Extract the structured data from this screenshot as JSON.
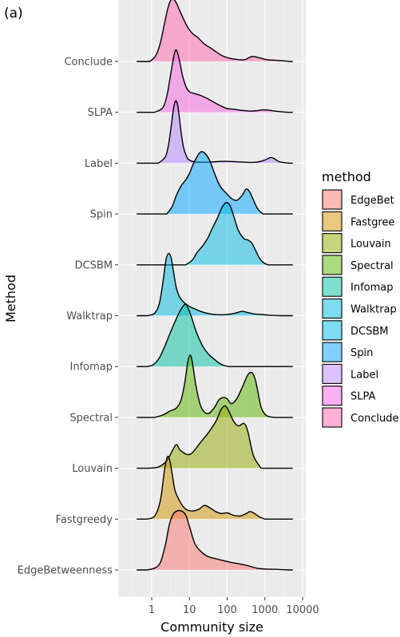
{
  "panel_tag": "(a)",
  "chart_data": {
    "type": "ridgeline density",
    "xlabel": "Community size",
    "ylabel": "Method",
    "x_scale": "log10",
    "x_ticks": [
      1,
      10,
      100,
      1000,
      10000
    ],
    "x_tick_labels": [
      "1",
      "10",
      "100",
      "1000",
      "10000"
    ],
    "x_range": [
      0.33,
      7000
    ],
    "grid": true,
    "legend": {
      "title": "method",
      "placement": "right",
      "entries": [
        "EdgeBet",
        "Fastgree",
        "Louvain",
        "Spectral",
        "Infomap",
        "Walktrap",
        "DCSBM",
        "Spin",
        "Label",
        "SLPA",
        "Conclude"
      ]
    },
    "series": [
      {
        "name": "EdgeBetweenness",
        "color": "#F8766D",
        "x": [
          0.75,
          1.2,
          1.7,
          2.3,
          3.0,
          4.0,
          6.0,
          8.0,
          10,
          14,
          20,
          30,
          50,
          80,
          130,
          200,
          350,
          600,
          1000,
          2000,
          4500
        ],
        "density": [
          0,
          0.03,
          0.12,
          0.4,
          0.75,
          0.92,
          0.95,
          0.88,
          0.7,
          0.42,
          0.3,
          0.22,
          0.18,
          0.15,
          0.12,
          0.1,
          0.07,
          0.03,
          0.015,
          0.01,
          0
        ]
      },
      {
        "name": "Fastgreedy",
        "color": "#D39200",
        "x": [
          0.75,
          1.2,
          1.7,
          2.2,
          2.6,
          3.0,
          3.5,
          4.2,
          6.0,
          8.0,
          12,
          18,
          25,
          35,
          50,
          70,
          100,
          150,
          220,
          300,
          400,
          500,
          700,
          1000
        ],
        "density": [
          0,
          0.05,
          0.3,
          0.8,
          1.0,
          0.95,
          0.72,
          0.45,
          0.25,
          0.16,
          0.13,
          0.16,
          0.22,
          0.18,
          0.12,
          0.09,
          0.1,
          0.06,
          0.05,
          0.08,
          0.12,
          0.1,
          0.04,
          0
        ]
      },
      {
        "name": "Louvain",
        "color": "#93AA00",
        "x": [
          0.75,
          1.5,
          2.5,
          3.5,
          4.5,
          5.5,
          7.0,
          9.0,
          12,
          20,
          30,
          50,
          70,
          90,
          110,
          150,
          200,
          280,
          350,
          500,
          800
        ],
        "density": [
          0,
          0.02,
          0.12,
          0.28,
          0.38,
          0.3,
          0.25,
          0.22,
          0.25,
          0.42,
          0.55,
          0.75,
          0.95,
          1.0,
          0.92,
          0.75,
          0.68,
          0.72,
          0.6,
          0.2,
          0
        ]
      },
      {
        "name": "Spectral",
        "color": "#5BB300",
        "x": [
          1.2,
          2.0,
          3.0,
          4.5,
          6.0,
          7.5,
          9.0,
          10.5,
          12,
          15,
          20,
          30,
          45,
          60,
          80,
          100,
          130,
          180,
          250,
          350,
          450,
          550,
          650,
          800,
          1100,
          1800
        ],
        "density": [
          0,
          0.04,
          0.1,
          0.15,
          0.28,
          0.55,
          0.88,
          1.0,
          0.88,
          0.5,
          0.18,
          0.06,
          0.15,
          0.28,
          0.32,
          0.3,
          0.22,
          0.3,
          0.48,
          0.68,
          0.72,
          0.62,
          0.42,
          0.16,
          0.03,
          0
        ]
      },
      {
        "name": "Infomap",
        "color": "#00C19F",
        "x": [
          0.75,
          1.1,
          1.6,
          2.2,
          3.0,
          4.0,
          5.5,
          7.0,
          8.0,
          9.0,
          11,
          14,
          18,
          24,
          32,
          45,
          60,
          80,
          110
        ],
        "density": [
          0,
          0.03,
          0.14,
          0.32,
          0.52,
          0.7,
          0.88,
          0.98,
          1.0,
          0.95,
          0.82,
          0.62,
          0.45,
          0.3,
          0.2,
          0.12,
          0.06,
          0.02,
          0
        ]
      },
      {
        "name": "Walktrap",
        "color": "#00BAE0",
        "x": [
          0.75,
          1.2,
          1.6,
          2.0,
          2.4,
          2.8,
          3.3,
          3.8,
          4.5,
          5.5,
          7.0,
          10,
          15,
          22,
          35,
          60,
          100,
          160,
          250,
          350,
          500,
          800,
          1200,
          2500
        ],
        "density": [
          0,
          0.04,
          0.2,
          0.55,
          0.9,
          1.0,
          0.92,
          0.7,
          0.45,
          0.3,
          0.22,
          0.15,
          0.1,
          0.06,
          0.03,
          0.015,
          0.02,
          0.04,
          0.07,
          0.05,
          0.03,
          0.02,
          0.01,
          0
        ]
      },
      {
        "name": "DCSBM",
        "color": "#00B9E3",
        "x": [
          8.0,
          12,
          16,
          22,
          30,
          40,
          55,
          70,
          85,
          100,
          120,
          150,
          200,
          280,
          350,
          450,
          550,
          700,
          900,
          1200
        ],
        "density": [
          0,
          0.08,
          0.2,
          0.3,
          0.42,
          0.58,
          0.75,
          0.9,
          0.98,
          1.0,
          0.95,
          0.78,
          0.55,
          0.42,
          0.4,
          0.35,
          0.25,
          0.12,
          0.04,
          0
        ]
      },
      {
        "name": "Spin",
        "color": "#00A5FF",
        "x": [
          2.5,
          3.5,
          4.5,
          6.0,
          8.0,
          10,
          13,
          18,
          22,
          28,
          35,
          50,
          65,
          80,
          100,
          130,
          180,
          250,
          320,
          400,
          500,
          650,
          900
        ],
        "density": [
          0,
          0.12,
          0.3,
          0.45,
          0.55,
          0.65,
          0.82,
          0.97,
          1.0,
          0.95,
          0.85,
          0.6,
          0.45,
          0.38,
          0.32,
          0.25,
          0.22,
          0.3,
          0.4,
          0.35,
          0.22,
          0.08,
          0
        ]
      },
      {
        "name": "Label",
        "color": "#B983FF",
        "x": [
          1.5,
          2.3,
          2.8,
          3.3,
          3.8,
          4.3,
          4.8,
          5.3,
          6.0,
          7.0,
          8.5,
          10,
          14,
          22,
          40,
          80,
          150,
          300,
          600,
          1000,
          1400,
          1800,
          2500,
          4500
        ],
        "density": [
          0,
          0.1,
          0.3,
          0.6,
          0.88,
          1.0,
          0.95,
          0.78,
          0.5,
          0.25,
          0.1,
          0.05,
          0.02,
          0.015,
          0.02,
          0.03,
          0.025,
          0.015,
          0.015,
          0.05,
          0.09,
          0.07,
          0.02,
          0
        ]
      },
      {
        "name": "SLPA",
        "color": "#F564E3",
        "x": [
          1.2,
          2.0,
          2.6,
          3.2,
          3.8,
          4.3,
          4.8,
          5.5,
          6.5,
          8.0,
          10,
          14,
          20,
          30,
          45,
          70,
          100,
          150,
          250,
          400,
          600,
          900,
          1400,
          2200,
          4000
        ],
        "density": [
          0,
          0.08,
          0.3,
          0.62,
          0.88,
          1.0,
          0.96,
          0.82,
          0.6,
          0.42,
          0.33,
          0.3,
          0.27,
          0.22,
          0.16,
          0.1,
          0.06,
          0.05,
          0.03,
          0.02,
          0.025,
          0.04,
          0.03,
          0.015,
          0
        ]
      },
      {
        "name": "Conclude",
        "color": "#FF64B0",
        "x": [
          0.9,
          1.3,
          1.7,
          2.2,
          2.7,
          3.2,
          3.8,
          4.5,
          5.5,
          7.0,
          9.0,
          12,
          17,
          25,
          40,
          70,
          120,
          200,
          300,
          450,
          700,
          1100,
          1800,
          3000,
          4500
        ],
        "density": [
          0,
          0.1,
          0.3,
          0.62,
          0.86,
          0.98,
          1.0,
          0.94,
          0.82,
          0.68,
          0.55,
          0.45,
          0.38,
          0.28,
          0.2,
          0.1,
          0.05,
          0.03,
          0.03,
          0.08,
          0.06,
          0.03,
          0.02,
          0.01,
          0
        ]
      }
    ]
  }
}
